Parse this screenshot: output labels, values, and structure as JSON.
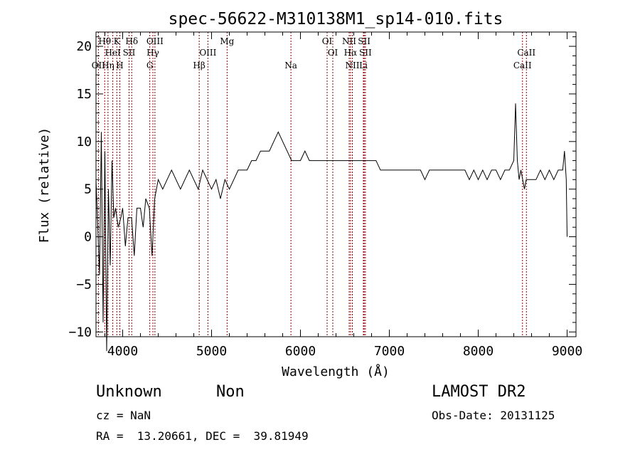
{
  "chart_data": {
    "type": "line",
    "title": "spec-56622-M310138M1_sp14-010.fits",
    "xlabel": "Wavelength (Å)",
    "ylabel": "Flux (relative)",
    "xlim": [
      3700,
      9100
    ],
    "ylim": [
      -10.5,
      21.5
    ],
    "xticks": [
      4000,
      5000,
      6000,
      7000,
      8000,
      9000
    ],
    "yticks": [
      -10,
      -5,
      0,
      5,
      10,
      15,
      20
    ],
    "grid": false,
    "line_color": "#000000",
    "marker_color": "#8b0000",
    "series": [
      {
        "values_x": [
          3700,
          3740,
          3760,
          3780,
          3800,
          3820,
          3840,
          3860,
          3880,
          3900,
          3920,
          3950,
          3980,
          4000,
          4030,
          4060,
          4100,
          4130,
          4160,
          4200,
          4230,
          4260,
          4300,
          4330,
          4360,
          4400,
          4450,
          4500,
          4550,
          4600,
          4650,
          4700,
          4750,
          4800,
          4850,
          4900,
          4950,
          5000,
          5050,
          5100,
          5150,
          5200,
          5250,
          5300,
          5350,
          5400,
          5450,
          5500,
          5550,
          5600,
          5650,
          5700,
          5750,
          5800,
          5850,
          5900,
          5950,
          6000,
          6050,
          6100,
          6150,
          6200,
          6250,
          6300,
          6350,
          6400,
          6450,
          6500,
          6550,
          6600,
          6650,
          6700,
          6750,
          6800,
          6850,
          6900,
          6950,
          7000,
          7050,
          7100,
          7150,
          7200,
          7250,
          7300,
          7350,
          7400,
          7450,
          7500,
          7550,
          7600,
          7650,
          7700,
          7750,
          7800,
          7850,
          7900,
          7950,
          8000,
          8050,
          8100,
          8150,
          8200,
          8250,
          8300,
          8350,
          8400,
          8420,
          8440,
          8460,
          8480,
          8500,
          8520,
          8540,
          8560,
          8600,
          8650,
          8700,
          8750,
          8800,
          8850,
          8900,
          8950,
          8970,
          8990,
          9000
        ],
        "values_y": [
          6,
          -4,
          11,
          -9,
          9,
          -12,
          5,
          -3,
          8,
          2,
          3,
          1,
          2,
          3,
          -1,
          2,
          2,
          -2,
          3,
          3,
          1,
          4,
          3,
          -2,
          4,
          6,
          5,
          6,
          7,
          6,
          5,
          6,
          7,
          6,
          5,
          7,
          6,
          5,
          6,
          4,
          6,
          5,
          6,
          7,
          7,
          7,
          8,
          8,
          9,
          9,
          9,
          10,
          11,
          10,
          9,
          8,
          8,
          8,
          9,
          8,
          8,
          8,
          8,
          8,
          8,
          8,
          8,
          8,
          8,
          8,
          8,
          8,
          8,
          8,
          8,
          7,
          7,
          7,
          7,
          7,
          7,
          7,
          7,
          7,
          7,
          6,
          7,
          7,
          7,
          7,
          7,
          7,
          7,
          7,
          7,
          6,
          7,
          6,
          7,
          6,
          7,
          7,
          6,
          7,
          7,
          8,
          14,
          8,
          6,
          7,
          6,
          5,
          6,
          6,
          6,
          6,
          7,
          6,
          7,
          6,
          7,
          7,
          9,
          6,
          0
        ]
      }
    ],
    "lines": [
      {
        "label": "Hθ",
        "x": 3798,
        "row": 1
      },
      {
        "label": "OII",
        "x": 3727,
        "row": 3
      },
      {
        "label": "Hη",
        "x": 3835,
        "row": 3
      },
      {
        "label": "HeI",
        "x": 3889,
        "row": 2
      },
      {
        "label": "K",
        "x": 3934,
        "row": 1
      },
      {
        "label": "H",
        "x": 3968,
        "row": 3
      },
      {
        "label": "SII",
        "x": 4072,
        "row": 2
      },
      {
        "label": "Hδ",
        "x": 4102,
        "row": 1
      },
      {
        "label": "OIII",
        "x": 4363,
        "row": 1
      },
      {
        "label": "Hγ",
        "x": 4340,
        "row": 2
      },
      {
        "label": "G",
        "x": 4305,
        "row": 3
      },
      {
        "label": "OIII",
        "x": 4959,
        "row": 2
      },
      {
        "label": "Hβ",
        "x": 4861,
        "row": 3
      },
      {
        "label": "Mg",
        "x": 5175,
        "row": 1
      },
      {
        "label": "Na",
        "x": 5893,
        "row": 3
      },
      {
        "label": "OI",
        "x": 6300,
        "row": 1
      },
      {
        "label": "OI",
        "x": 6364,
        "row": 2
      },
      {
        "label": "NII",
        "x": 6548,
        "row": 1
      },
      {
        "label": "SII",
        "x": 6717,
        "row": 1
      },
      {
        "label": "Hα",
        "x": 6563,
        "row": 2
      },
      {
        "label": "SII",
        "x": 6731,
        "row": 2
      },
      {
        "label": "NII",
        "x": 6584,
        "row": 3
      },
      {
        "label": "Li",
        "x": 6708,
        "row": 3
      },
      {
        "label": "CaII",
        "x": 8542,
        "row": 2
      },
      {
        "label": "CaII",
        "x": 8498,
        "row": 3
      }
    ]
  },
  "info": {
    "class": "Unknown",
    "subclass": "Non",
    "survey": "LAMOST DR2",
    "cz": "cz = NaN",
    "obs_date": "Obs-Date: 20131125",
    "radec": "RA =  13.20661, DEC =  39.81949"
  }
}
